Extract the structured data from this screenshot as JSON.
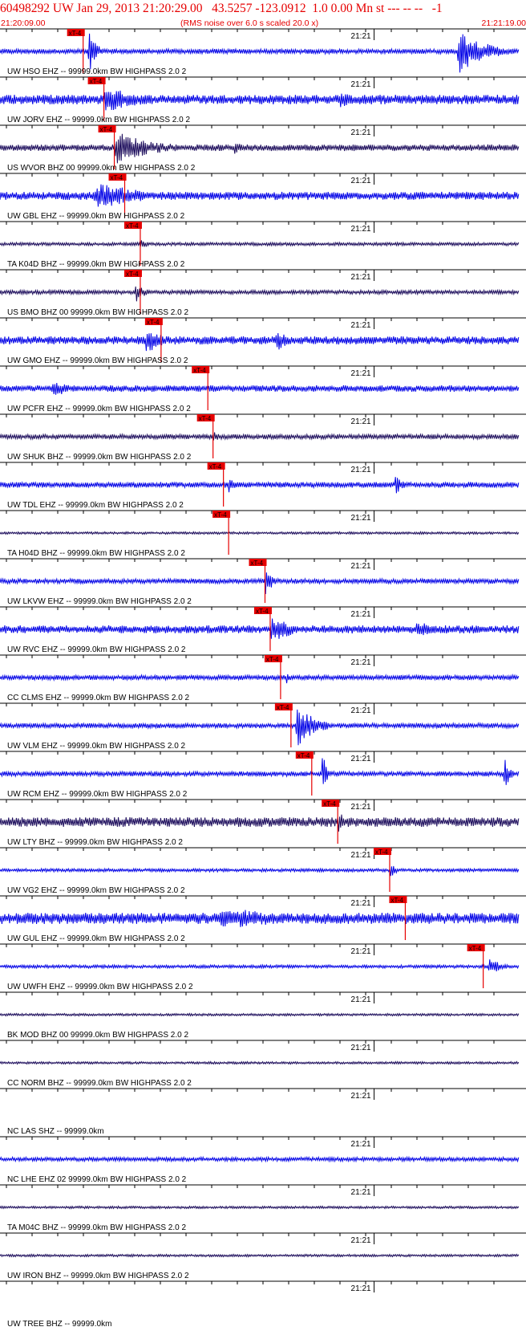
{
  "header": {
    "title": "60498292 UW Jan 29, 2013 21:20:29.00   43.5257 -123.0912  1.0 0.00 Mn st --- -- --   -1",
    "start_time": "21:20:09.00",
    "note": "(RMS noise over 6.0 s scaled 20.0 x)",
    "end_time": "21:21:19.00"
  },
  "colors": {
    "header_text": "#e60000",
    "trace_blue": "#0000e6",
    "trace_navy": "#1a0a5a",
    "pick_marker": "#e60000",
    "axis": "#000000"
  },
  "chart_data": {
    "type": "line",
    "x_start": "21:20:09.00",
    "x_end": "21:21:19.00",
    "minute_label": "21:21",
    "pick_label": "xT-4",
    "series": [
      {
        "name": "UW HSO EHZ -- 99999.0km BW  HIGHPASS  2.0  2",
        "color": "blue",
        "amp": 3,
        "pick": 0.16,
        "events": [
          [
            0.17,
            0.2,
            30
          ],
          [
            0.88,
            0.99,
            30
          ]
        ]
      },
      {
        "name": "UW JORV EHZ -- 99999.0km BW  HIGHPASS  2.0  2",
        "color": "blue",
        "amp": 6,
        "pick": 0.2,
        "events": [
          [
            0.2,
            0.35,
            18
          ],
          [
            0.65,
            0.72,
            12
          ]
        ]
      },
      {
        "name": "US WVOR BHZ 00 99999.0km BW  HIGHPASS  2.0  2",
        "color": "navy",
        "amp": 4,
        "pick": 0.22,
        "events": [
          [
            0.22,
            0.38,
            22
          ],
          [
            0.45,
            0.5,
            10
          ]
        ]
      },
      {
        "name": "UW GBL EHZ -- 99999.0km BW  HIGHPASS  2.0  2",
        "color": "blue",
        "amp": 5,
        "pick": 0.24,
        "events": [
          [
            0.18,
            0.4,
            18
          ]
        ]
      },
      {
        "name": "TA K04D BHZ -- 99999.0km BW  HIGHPASS  2.0  2",
        "color": "navy",
        "amp": 2,
        "pick": 0.27,
        "events": [
          [
            0.27,
            0.3,
            8
          ]
        ]
      },
      {
        "name": "US BMO BHZ 00 99999.0km BW  HIGHPASS  2.0  2",
        "color": "navy",
        "amp": 2.5,
        "pick": 0.27,
        "events": [
          [
            0.26,
            0.3,
            14
          ]
        ]
      },
      {
        "name": "UW GMO EHZ -- 99999.0km BW  HIGHPASS  2.0  2",
        "color": "blue",
        "amp": 5,
        "pick": 0.31,
        "events": [
          [
            0.28,
            0.34,
            20
          ],
          [
            0.53,
            0.58,
            16
          ]
        ]
      },
      {
        "name": "UW PCFR EHZ -- 99999.0km BW  HIGHPASS  2.0  2",
        "color": "blue",
        "amp": 4,
        "pick": 0.4,
        "events": [
          [
            0.1,
            0.16,
            14
          ]
        ]
      },
      {
        "name": "UW SHUK BHZ -- 99999.0km BW  HIGHPASS  2.0  2",
        "color": "navy",
        "amp": 3,
        "pick": 0.41,
        "events": [
          [
            0.41,
            0.44,
            9
          ]
        ]
      },
      {
        "name": "UW TDL EHZ -- 99999.0km BW  HIGHPASS  2.0  2",
        "color": "blue",
        "amp": 3.5,
        "pick": 0.43,
        "events": [
          [
            0.44,
            0.46,
            16
          ],
          [
            0.76,
            0.79,
            14
          ]
        ]
      },
      {
        "name": "TA H04D BHZ -- 99999.0km BW  HIGHPASS  2.0  2",
        "color": "navy",
        "amp": 1.5,
        "pick": 0.44,
        "events": []
      },
      {
        "name": "UW LKVW EHZ -- 99999.0km BW  HIGHPASS  2.0  2",
        "color": "blue",
        "amp": 3,
        "pick": 0.51,
        "events": [
          [
            0.51,
            0.54,
            20
          ]
        ]
      },
      {
        "name": "UW RVC EHZ -- 99999.0km BW  HIGHPASS  2.0  2",
        "color": "blue",
        "amp": 5,
        "pick": 0.52,
        "events": [
          [
            0.52,
            0.62,
            18
          ],
          [
            0.8,
            0.88,
            12
          ]
        ]
      },
      {
        "name": "CC CLMS EHZ -- 99999.0km BW  HIGHPASS  2.0  2",
        "color": "blue",
        "amp": 3,
        "pick": 0.54,
        "events": [
          [
            0.55,
            0.57,
            10
          ]
        ]
      },
      {
        "name": "UW VLM EHZ -- 99999.0km BW  HIGHPASS  2.0  2",
        "color": "blue",
        "amp": 3,
        "pick": 0.56,
        "events": [
          [
            0.57,
            0.64,
            30
          ]
        ]
      },
      {
        "name": "UW RCM EHZ -- 99999.0km BW  HIGHPASS  2.0  2",
        "color": "blue",
        "amp": 3,
        "pick": 0.6,
        "events": [
          [
            0.62,
            0.64,
            28
          ],
          [
            0.97,
            0.99,
            26
          ]
        ]
      },
      {
        "name": "UW LTY BHZ -- 99999.0km BW  HIGHPASS  2.0  2",
        "color": "navy",
        "amp": 6,
        "pick": 0.65,
        "events": [
          [
            0.65,
            0.68,
            18
          ]
        ]
      },
      {
        "name": "UW VG2 EHZ -- 99999.0km BW  HIGHPASS  2.0  2",
        "color": "blue",
        "amp": 2,
        "pick": 0.75,
        "events": [
          [
            0.75,
            0.77,
            16
          ]
        ]
      },
      {
        "name": "UW GUL EHZ -- 99999.0km BW  HIGHPASS  2.0  2",
        "color": "blue",
        "amp": 7,
        "pick": 0.78,
        "events": [
          [
            0.42,
            0.82,
            14
          ]
        ]
      },
      {
        "name": "UW UWFH EHZ -- 99999.0km BW  HIGHPASS  2.0  2",
        "color": "blue",
        "amp": 2,
        "pick": 0.93,
        "events": [
          [
            0.94,
            0.99,
            12
          ]
        ]
      },
      {
        "name": "BK MOD BHZ 00 99999.0km BW  HIGHPASS  2.0  2",
        "color": "navy",
        "amp": 1.5,
        "pick": null,
        "events": []
      },
      {
        "name": "CC NORM BHZ -- 99999.0km BW  HIGHPASS  2.0  2",
        "color": "navy",
        "amp": 1.5,
        "pick": null,
        "events": []
      },
      {
        "name": "NC LAS SHZ -- 99999.0km",
        "color": "blue",
        "amp": 0,
        "pick": null,
        "events": []
      },
      {
        "name": "NC LHE EHZ 02 99999.0km BW  HIGHPASS  2.0  2",
        "color": "blue",
        "amp": 2.5,
        "pick": null,
        "events": []
      },
      {
        "name": "TA M04C BHZ -- 99999.0km BW  HIGHPASS  2.0  2",
        "color": "navy",
        "amp": 1.5,
        "pick": null,
        "events": []
      },
      {
        "name": "UW IRON BHZ -- 99999.0km BW  HIGHPASS  2.0  2",
        "color": "navy",
        "amp": 1.5,
        "pick": null,
        "events": []
      },
      {
        "name": "UW TREE BHZ -- 99999.0km",
        "color": "navy",
        "amp": 0,
        "pick": null,
        "events": []
      }
    ]
  }
}
